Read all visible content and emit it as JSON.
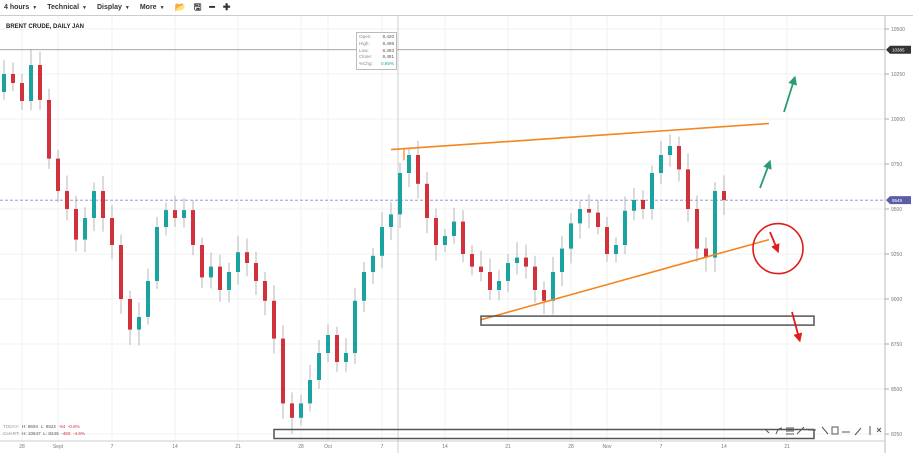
{
  "toolbar": {
    "interval": "4 hours",
    "technical": "Technical",
    "display": "Display",
    "more": "More",
    "icons": [
      "folder-open-icon",
      "save-icon",
      "zoom-out-icon",
      "zoom-in-icon"
    ]
  },
  "legend": {
    "title": "BRENT CRUDE, DAILY JAN"
  },
  "ohlc_tooltip": {
    "open_label": "Open:",
    "open": "9,420",
    "high_label": "High:",
    "high": "9,498",
    "low_label": "Low:",
    "low": "9,393",
    "close_label": "Close:",
    "close": "9,481",
    "chg_label": "%Chg:",
    "chg": "0.65%"
  },
  "stats": {
    "today_label": "TODAY:",
    "today_h": "H: 9694",
    "today_l": "L: 9522",
    "today_chg": "-54",
    "today_pct": "-0.6%",
    "chart_label": "CHART:",
    "chart_h": "H: 10647",
    "chart_l": "L: 8246",
    "chart_chg": "-460",
    "chart_pct": "-4.6%"
  },
  "colors": {
    "up": "#1aa3a0",
    "down": "#d0313a",
    "trendline": "#f5851f",
    "annotation": "#e01b1b",
    "arrow_up": "#2a9d6e",
    "last_price_tag": "#5b5ea6",
    "marker_tag": "#333333"
  },
  "chart_data": {
    "type": "candlestick",
    "title": "BRENT CRUDE, DAILY JAN",
    "ylim": [
      8200,
      10600
    ],
    "y_ticks": [
      10500,
      10250,
      10000,
      9750,
      9500,
      9250,
      9000,
      8750,
      8500,
      8250
    ],
    "x_ticks": [
      {
        "label": "28",
        "date": "Aug 28"
      },
      {
        "label": "Sept",
        "date": "Sep 1"
      },
      {
        "label": "7",
        "date": "Sep 7"
      },
      {
        "label": "14",
        "date": "Sep 14"
      },
      {
        "label": "21",
        "date": "Sep 21"
      },
      {
        "label": "28",
        "date": "Sep 28"
      },
      {
        "label": "Oct",
        "date": "Oct 1"
      },
      {
        "label": "7",
        "date": "Oct 7"
      },
      {
        "label": "14",
        "date": "Oct 14"
      },
      {
        "label": "21",
        "date": "Oct 21"
      },
      {
        "label": "28",
        "date": "Oct 28"
      },
      {
        "label": "Nov",
        "date": "Nov 1"
      },
      {
        "label": "7",
        "date": "Nov 7"
      },
      {
        "label": "14",
        "date": "Nov 14"
      },
      {
        "label": "21",
        "date": "Nov 21"
      }
    ],
    "dates": [
      "Aug 25",
      "Aug 26",
      "Aug 27",
      "Aug 28",
      "Aug 29",
      "Aug 30",
      "Aug 31",
      "Sep 1",
      "Sep 2",
      "Sep 3",
      "Sep 4",
      "Sep 5",
      "Sep 6",
      "Sep 7",
      "Sep 8",
      "Sep 9",
      "Sep 10",
      "Sep 11",
      "Sep 12",
      "Sep 13",
      "Sep 14",
      "Sep 15",
      "Sep 16",
      "Sep 17",
      "Sep 18",
      "Sep 19",
      "Sep 20",
      "Sep 21",
      "Sep 22",
      "Sep 23",
      "Sep 24",
      "Sep 25",
      "Sep 26",
      "Sep 27",
      "Sep 28",
      "Sep 29",
      "Sep 30",
      "Oct 1",
      "Oct 2",
      "Oct 3",
      "Oct 4",
      "Oct 5",
      "Oct 6",
      "Oct 7",
      "Oct 8",
      "Oct 9",
      "Oct 10",
      "Oct 11",
      "Oct 12",
      "Oct 13",
      "Oct 14",
      "Oct 15",
      "Oct 16",
      "Oct 17",
      "Oct 18",
      "Oct 19",
      "Oct 20",
      "Oct 21",
      "Oct 22",
      "Oct 23",
      "Oct 24",
      "Oct 25",
      "Oct 26",
      "Oct 27",
      "Oct 28",
      "Oct 29",
      "Oct 30",
      "Oct 31",
      "Nov 1",
      "Nov 2",
      "Nov 3",
      "Nov 4",
      "Nov 5",
      "Nov 6",
      "Nov 7",
      "Nov 8",
      "Nov 9",
      "Nov 10",
      "Nov 11",
      "Nov 12",
      "Nov 13",
      "Nov 14"
    ],
    "close": [
      10150,
      10250,
      10200,
      10100,
      10300,
      10106,
      9780,
      9600,
      9500,
      9330,
      9450,
      9600,
      9450,
      9300,
      9000,
      8830,
      8900,
      9100,
      9400,
      9494,
      9450,
      9494,
      9300,
      9120,
      9180,
      9050,
      9150,
      9260,
      9200,
      9100,
      8990,
      8780,
      8420,
      8340,
      8420,
      8550,
      8700,
      8800,
      8650,
      8700,
      8990,
      9150,
      9240,
      9400,
      9470,
      9700,
      9800,
      9640,
      9450,
      9300,
      9350,
      9430,
      9250,
      9180,
      9150,
      9050,
      9100,
      9200,
      9230,
      9180,
      9050,
      8990,
      9150,
      9280,
      9420,
      9500,
      9480,
      9400,
      9250,
      9300,
      9490,
      9550,
      9500,
      9700,
      9800,
      9850,
      9720,
      9500,
      9280,
      9230,
      9600,
      9550
    ],
    "horizontal_lines": [
      {
        "price": 10385,
        "label": "10385",
        "style": "solid"
      },
      {
        "price": 9549,
        "label": "9549",
        "style": "dashed"
      }
    ],
    "annotations": {
      "trendlines": [
        {
          "from": [
            "Oct 8",
            9830
          ],
          "to": [
            "Nov 19",
            9975
          ]
        },
        {
          "from": [
            "Oct 18",
            8885
          ],
          "to": [
            "Nov 19",
            9330
          ]
        }
      ],
      "rectangles": [
        {
          "from": [
            "Oct 18",
            8905
          ],
          "to": [
            "Nov 24",
            8855
          ]
        },
        {
          "from": [
            "Sep 25",
            8275
          ],
          "to": [
            "Nov 24",
            8225
          ]
        }
      ],
      "circle": {
        "center": [
          "Nov 20",
          9280
        ]
      },
      "arrows": [
        {
          "color": "red",
          "direction": "down"
        },
        {
          "color": "red",
          "direction": "down"
        },
        {
          "color": "green",
          "direction": "up"
        },
        {
          "color": "green",
          "direction": "up"
        }
      ]
    }
  }
}
